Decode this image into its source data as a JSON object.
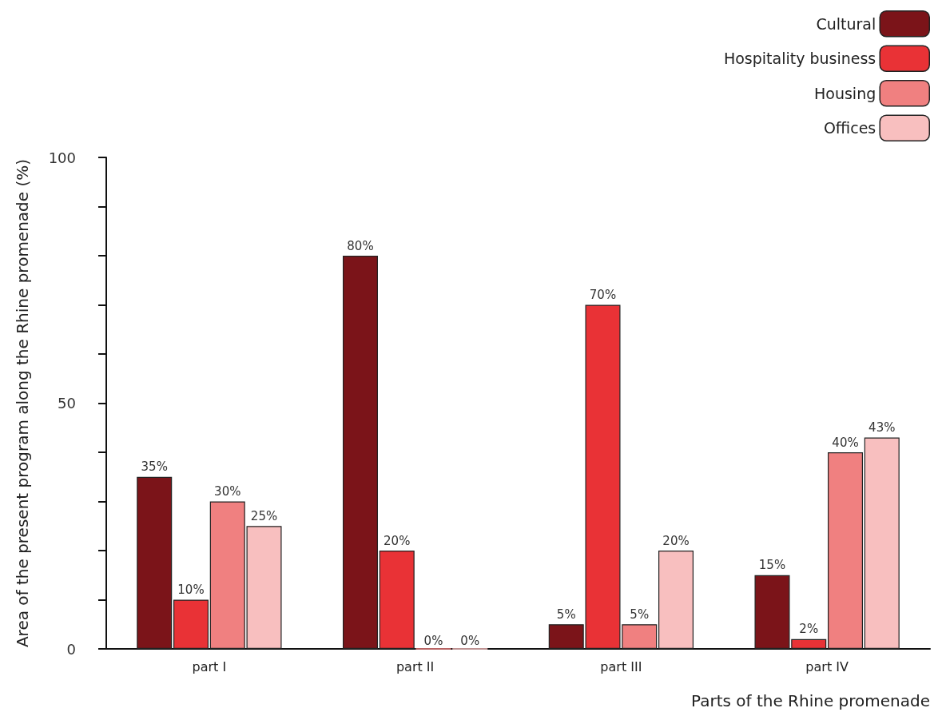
{
  "chart_data": {
    "type": "bar",
    "xlabel": "Parts of the Rhine promenade",
    "ylabel": "Area of the present program along the Rhine promenade (%)",
    "categories": [
      "part I",
      "part II",
      "part III",
      "part IV"
    ],
    "series": [
      {
        "name": "Cultural",
        "color": "#7b1419",
        "values": [
          35,
          80,
          5,
          15
        ],
        "value_labels": [
          "35%",
          "80%",
          "5%",
          "15%"
        ]
      },
      {
        "name": "Hospitality business",
        "color": "#e93236",
        "values": [
          10,
          20,
          70,
          2
        ],
        "value_labels": [
          "10%",
          "20%",
          "70%",
          "2%"
        ]
      },
      {
        "name": "Housing",
        "color": "#f08080",
        "values": [
          30,
          0,
          5,
          40
        ],
        "value_labels": [
          "30%",
          "0%",
          "5%",
          "40%"
        ]
      },
      {
        "name": "Offices",
        "color": "#f8bfbf",
        "values": [
          25,
          0,
          20,
          43
        ],
        "value_labels": [
          "25%",
          "0%",
          "20%",
          "43%"
        ]
      }
    ],
    "ylim": [
      0,
      100
    ],
    "yticks": [
      0,
      {
        "value": 10,
        "label": null
      },
      {
        "value": 20,
        "label": null
      },
      {
        "value": 30,
        "label": null
      },
      {
        "value": 40,
        "label": null
      },
      50,
      {
        "value": 60,
        "label": null
      },
      {
        "value": 70,
        "label": null
      },
      {
        "value": 80,
        "label": null
      },
      {
        "value": 90,
        "label": null
      },
      100
    ],
    "grid": false,
    "legend": "top right"
  }
}
